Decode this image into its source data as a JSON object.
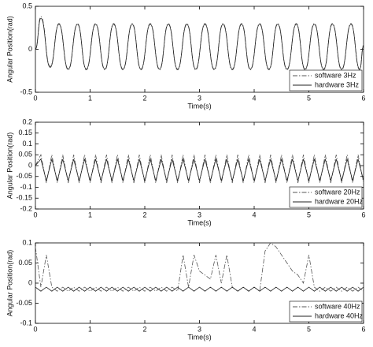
{
  "chart_data": [
    {
      "type": "line",
      "smooth": true,
      "x_label": "Time(s)",
      "y_label": "Angular Position(rad)",
      "xlim": [
        0,
        6
      ],
      "ylim": [
        -0.5,
        0.5
      ],
      "xticks": [
        0,
        1,
        2,
        3,
        4,
        5,
        6
      ],
      "yticks": [
        -0.5,
        0,
        0.5
      ],
      "legend": "lower right",
      "x": [
        0,
        0.1,
        0.27,
        0.43,
        0.6,
        0.77,
        0.93,
        1.1,
        1.27,
        1.43,
        1.6,
        1.77,
        1.93,
        2.1,
        2.27,
        2.43,
        2.6,
        2.77,
        2.93,
        3.1,
        3.27,
        3.43,
        3.6,
        3.77,
        3.93,
        4.1,
        4.27,
        4.43,
        4.6,
        4.77,
        4.93,
        5.1,
        5.27,
        5.43,
        5.6,
        5.77,
        5.93,
        6
      ],
      "series": [
        {
          "name": "software 3Hz",
          "color": "#555555",
          "dash": "dashdot",
          "values": [
            0,
            0.38,
            -0.2,
            0.3,
            -0.24,
            0.3,
            -0.24,
            0.3,
            -0.24,
            0.3,
            -0.24,
            0.3,
            -0.24,
            0.3,
            -0.24,
            0.3,
            -0.24,
            0.3,
            -0.24,
            0.3,
            -0.24,
            0.3,
            -0.24,
            0.3,
            -0.24,
            0.3,
            -0.24,
            0.3,
            -0.24,
            0.3,
            -0.24,
            0.3,
            -0.24,
            0.3,
            -0.24,
            0.3,
            -0.24,
            0.05
          ]
        },
        {
          "name": "hardware 3Hz",
          "color": "#222222",
          "dash": "solid",
          "values": [
            0,
            0.36,
            -0.21,
            0.29,
            -0.23,
            0.29,
            -0.23,
            0.29,
            -0.23,
            0.29,
            -0.23,
            0.29,
            -0.23,
            0.29,
            -0.23,
            0.29,
            -0.23,
            0.29,
            -0.23,
            0.29,
            -0.23,
            0.29,
            -0.23,
            0.29,
            -0.23,
            0.29,
            -0.23,
            0.29,
            -0.23,
            0.29,
            -0.23,
            0.29,
            -0.23,
            0.29,
            -0.23,
            0.29,
            -0.23,
            0.04
          ]
        }
      ]
    },
    {
      "type": "line",
      "x_label": "Time(s)",
      "y_label": "Angular Position(rad)",
      "xlim": [
        0,
        6
      ],
      "ylim": [
        -0.2,
        0.2
      ],
      "xticks": [
        0,
        1,
        2,
        3,
        4,
        5,
        6
      ],
      "yticks": [
        -0.2,
        -0.15,
        -0.1,
        -0.05,
        0,
        0.05,
        0.1,
        0.15,
        0.2
      ],
      "legend": "lower right",
      "x": [
        0,
        0.1,
        0.2,
        0.3,
        0.4,
        0.5,
        0.6,
        0.7,
        0.8,
        0.9,
        1,
        1.1,
        1.2,
        1.3,
        1.4,
        1.5,
        1.6,
        1.7,
        1.8,
        1.9,
        2,
        2.1,
        2.2,
        2.3,
        2.4,
        2.5,
        2.6,
        2.7,
        2.8,
        2.9,
        3,
        3.1,
        3.2,
        3.3,
        3.4,
        3.5,
        3.6,
        3.7,
        3.8,
        3.9,
        4,
        4.1,
        4.2,
        4.3,
        4.4,
        4.5,
        4.6,
        4.7,
        4.8,
        4.9,
        5,
        5.1,
        5.2,
        5.3,
        5.4,
        5.5,
        5.6,
        5.7,
        5.8,
        5.9,
        6
      ],
      "series": [
        {
          "name": "software 20Hz",
          "color": "#555555",
          "dash": "dashdot",
          "values": [
            0,
            0.05,
            -0.08,
            0.05,
            -0.08,
            0.05,
            -0.08,
            0.05,
            -0.08,
            0.05,
            -0.08,
            0.05,
            -0.08,
            0.05,
            -0.08,
            0.05,
            -0.08,
            0.05,
            -0.08,
            0.05,
            -0.08,
            0.05,
            -0.08,
            0.05,
            -0.08,
            0.05,
            -0.08,
            0.05,
            -0.08,
            0.05,
            -0.08,
            0.05,
            -0.08,
            0.05,
            -0.08,
            0.05,
            -0.08,
            0.05,
            -0.08,
            0.05,
            -0.08,
            0.05,
            -0.08,
            0.05,
            -0.08,
            0.05,
            -0.08,
            0.05,
            -0.08,
            0.05,
            -0.08,
            0.05,
            -0.08,
            0.05,
            -0.08,
            0.05,
            -0.08,
            0.05,
            -0.08,
            0.05,
            -0.08
          ]
        },
        {
          "name": "hardware 20Hz",
          "color": "#222222",
          "dash": "solid",
          "values": [
            0,
            0.03,
            -0.07,
            0.03,
            -0.07,
            0.03,
            -0.07,
            0.03,
            -0.07,
            0.03,
            -0.07,
            0.03,
            -0.07,
            0.03,
            -0.07,
            0.03,
            -0.07,
            0.03,
            -0.07,
            0.03,
            -0.07,
            0.03,
            -0.07,
            0.03,
            -0.07,
            0.03,
            -0.07,
            0.03,
            -0.07,
            0.03,
            -0.07,
            0.03,
            -0.07,
            0.03,
            -0.07,
            0.03,
            -0.07,
            0.03,
            -0.07,
            0.03,
            -0.07,
            0.03,
            -0.07,
            0.03,
            -0.07,
            0.03,
            -0.07,
            0.03,
            -0.07,
            0.03,
            -0.07,
            0.03,
            -0.07,
            0.03,
            -0.07,
            0.03,
            -0.07,
            0.03,
            -0.07,
            0.03,
            -0.07
          ]
        }
      ]
    },
    {
      "type": "line",
      "x_label": "Time(s)",
      "y_label": "Angular Position(rad)",
      "xlim": [
        0,
        6
      ],
      "ylim": [
        -0.1,
        0.1
      ],
      "xticks": [
        0,
        1,
        2,
        3,
        4,
        5,
        6
      ],
      "yticks": [
        -0.1,
        -0.05,
        0,
        0.05,
        0.1
      ],
      "legend": "lower right",
      "x": [
        0,
        0.1,
        0.2,
        0.3,
        0.4,
        0.5,
        0.6,
        0.7,
        0.8,
        0.9,
        1,
        1.1,
        1.2,
        1.3,
        1.4,
        1.5,
        1.6,
        1.7,
        1.8,
        1.9,
        2,
        2.1,
        2.2,
        2.3,
        2.4,
        2.5,
        2.6,
        2.7,
        2.8,
        2.9,
        3,
        3.1,
        3.2,
        3.3,
        3.4,
        3.5,
        3.6,
        3.7,
        3.8,
        3.9,
        4,
        4.1,
        4.2,
        4.3,
        4.4,
        4.5,
        4.6,
        4.7,
        4.8,
        4.9,
        5,
        5.1,
        5.2,
        5.3,
        5.4,
        5.5,
        5.6,
        5.7,
        5.8,
        5.9,
        6
      ],
      "series": [
        {
          "name": "software 40Hz",
          "color": "#555555",
          "dash": "dashdot",
          "values": [
            0.09,
            -0.01,
            0.07,
            -0.01,
            -0.02,
            -0.01,
            -0.02,
            -0.01,
            -0.02,
            -0.01,
            -0.02,
            -0.01,
            -0.02,
            -0.01,
            -0.02,
            -0.01,
            -0.02,
            -0.01,
            -0.02,
            -0.01,
            -0.02,
            -0.01,
            -0.02,
            -0.01,
            -0.02,
            -0.01,
            -0.02,
            0.07,
            -0.01,
            0.07,
            0.03,
            0.02,
            0.01,
            0.07,
            0,
            0.07,
            -0.01,
            -0.02,
            -0.01,
            -0.02,
            -0.01,
            -0.02,
            0.08,
            0.1,
            0.09,
            0.07,
            0.05,
            0.03,
            0.02,
            0,
            0.07,
            -0.01,
            -0.02,
            -0.01,
            -0.02,
            -0.01,
            -0.02,
            -0.01,
            -0.02,
            -0.01,
            -0.02
          ]
        },
        {
          "name": "hardware 40Hz",
          "color": "#222222",
          "dash": "solid",
          "values": [
            -0.01,
            -0.02,
            -0.01,
            -0.02,
            -0.01,
            -0.02,
            -0.01,
            -0.02,
            -0.01,
            -0.02,
            -0.01,
            -0.02,
            -0.01,
            -0.02,
            -0.01,
            -0.02,
            -0.01,
            -0.02,
            -0.01,
            -0.02,
            -0.01,
            -0.02,
            -0.01,
            -0.02,
            -0.01,
            -0.02,
            -0.01,
            -0.02,
            -0.01,
            -0.02,
            -0.01,
            -0.02,
            -0.01,
            -0.02,
            -0.01,
            -0.02,
            -0.01,
            -0.02,
            -0.01,
            -0.02,
            -0.01,
            -0.02,
            -0.01,
            -0.02,
            -0.01,
            -0.02,
            -0.01,
            -0.02,
            -0.01,
            -0.02,
            -0.01,
            -0.02,
            -0.01,
            -0.02,
            -0.01,
            -0.02,
            -0.01,
            -0.02,
            -0.01,
            -0.02,
            -0.01
          ]
        }
      ]
    }
  ]
}
